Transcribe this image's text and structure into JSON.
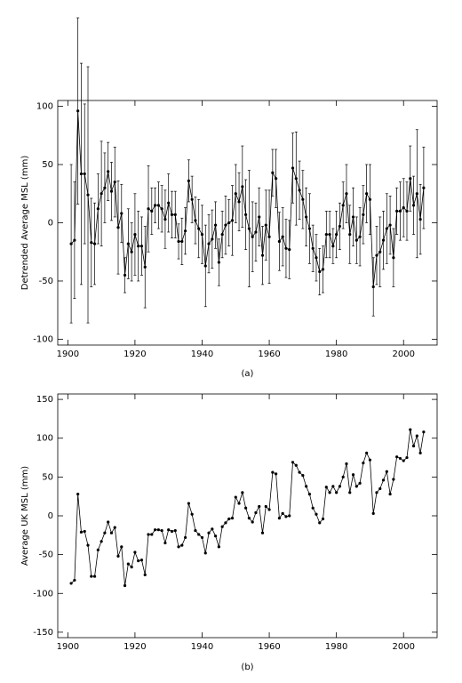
{
  "chart_data": [
    {
      "type": "errorbar",
      "label": "(a)",
      "ylabel": "Detrended Average MSL (mm)",
      "color": "#000000",
      "x": [
        1901,
        1902,
        1903,
        1904,
        1905,
        1906,
        1907,
        1908,
        1909,
        1910,
        1911,
        1912,
        1913,
        1914,
        1915,
        1916,
        1917,
        1918,
        1919,
        1920,
        1921,
        1922,
        1923,
        1924,
        1925,
        1926,
        1927,
        1928,
        1929,
        1930,
        1931,
        1932,
        1933,
        1934,
        1935,
        1936,
        1937,
        1938,
        1939,
        1940,
        1941,
        1942,
        1943,
        1944,
        1945,
        1946,
        1947,
        1948,
        1949,
        1950,
        1951,
        1952,
        1953,
        1954,
        1955,
        1956,
        1957,
        1958,
        1959,
        1960,
        1961,
        1962,
        1963,
        1964,
        1965,
        1966,
        1967,
        1968,
        1969,
        1970,
        1971,
        1972,
        1973,
        1974,
        1975,
        1976,
        1977,
        1978,
        1979,
        1980,
        1981,
        1982,
        1983,
        1984,
        1985,
        1986,
        1987,
        1988,
        1989,
        1990,
        1991,
        1992,
        1993,
        1994,
        1995,
        1996,
        1997,
        1998,
        1999,
        2000,
        2001,
        2002,
        2003,
        2004,
        2005,
        2006
      ],
      "values": [
        -18,
        -15,
        96,
        42,
        42,
        24,
        -17,
        -18,
        12,
        25,
        30,
        44,
        27,
        35,
        -4,
        8,
        -45,
        -18,
        -25,
        -10,
        -20,
        -20,
        -38,
        12,
        10,
        15,
        15,
        12,
        3,
        17,
        7,
        7,
        -16,
        -16,
        -7,
        36,
        20,
        2,
        -5,
        -10,
        -37,
        -18,
        -14,
        -2,
        -34,
        -10,
        -2,
        0,
        2,
        25,
        18,
        31,
        7,
        -5,
        -12,
        -8,
        5,
        -28,
        -2,
        -12,
        43,
        38,
        -16,
        -12,
        -22,
        -23,
        47,
        38,
        28,
        20,
        5,
        -5,
        -22,
        -30,
        -42,
        -40,
        -10,
        -10,
        -20,
        -10,
        -3,
        15,
        25,
        -10,
        5,
        -15,
        -12,
        7,
        25,
        20,
        -55,
        -28,
        -25,
        -15,
        -5,
        -2,
        -30,
        10,
        10,
        13,
        10,
        38,
        15,
        25,
        3,
        30
      ],
      "errors": [
        68,
        50,
        80,
        95,
        60,
        110,
        38,
        35,
        30,
        45,
        30,
        25,
        25,
        30,
        40,
        25,
        15,
        30,
        25,
        35,
        30,
        25,
        35,
        37,
        20,
        15,
        20,
        20,
        25,
        25,
        20,
        20,
        15,
        20,
        20,
        18,
        20,
        20,
        25,
        25,
        35,
        25,
        25,
        20,
        20,
        20,
        25,
        20,
        30,
        25,
        25,
        35,
        30,
        50,
        30,
        25,
        25,
        25,
        30,
        40,
        20,
        25,
        25,
        25,
        25,
        25,
        30,
        40,
        25,
        25,
        25,
        30,
        20,
        20,
        20,
        20,
        20,
        20,
        15,
        20,
        20,
        20,
        25,
        25,
        25,
        20,
        25,
        25,
        25,
        30,
        25,
        25,
        30,
        25,
        30,
        25,
        25,
        20,
        25,
        25,
        25,
        28,
        25,
        55,
        30,
        35
      ],
      "xlim": [
        1897,
        2010
      ],
      "xticks": [
        1900,
        1920,
        1940,
        1960,
        1980,
        2000
      ],
      "ylim": [
        -105,
        105
      ],
      "yticks": [
        -100,
        -50,
        0,
        50,
        100
      ]
    },
    {
      "type": "line",
      "label": "(b)",
      "ylabel": "Average UK MSL (mm)",
      "color": "#000000",
      "x": [
        1901,
        1902,
        1903,
        1904,
        1905,
        1906,
        1907,
        1908,
        1909,
        1910,
        1911,
        1912,
        1913,
        1914,
        1915,
        1916,
        1917,
        1918,
        1919,
        1920,
        1921,
        1922,
        1923,
        1924,
        1925,
        1926,
        1927,
        1928,
        1929,
        1930,
        1931,
        1932,
        1933,
        1934,
        1935,
        1936,
        1937,
        1938,
        1939,
        1940,
        1941,
        1942,
        1943,
        1944,
        1945,
        1946,
        1947,
        1948,
        1949,
        1950,
        1951,
        1952,
        1953,
        1954,
        1955,
        1956,
        1957,
        1958,
        1959,
        1960,
        1961,
        1962,
        1963,
        1964,
        1965,
        1966,
        1967,
        1968,
        1969,
        1970,
        1971,
        1972,
        1973,
        1974,
        1975,
        1976,
        1977,
        1978,
        1979,
        1980,
        1981,
        1982,
        1983,
        1984,
        1985,
        1986,
        1987,
        1988,
        1989,
        1990,
        1991,
        1992,
        1993,
        1994,
        1995,
        1996,
        1997,
        1998,
        1999,
        2000,
        2001,
        2002,
        2003,
        2004,
        2005,
        2006
      ],
      "values": [
        -87,
        -83,
        28,
        -21,
        -20,
        -38,
        -78,
        -78,
        -44,
        -33,
        -22,
        -8,
        -22,
        -15,
        -52,
        -40,
        -90,
        -62,
        -66,
        -47,
        -58,
        -57,
        -76,
        -24,
        -24,
        -18,
        -18,
        -19,
        -35,
        -18,
        -20,
        -19,
        -40,
        -38,
        -28,
        16,
        2,
        -19,
        -24,
        -28,
        -48,
        -22,
        -17,
        -26,
        -40,
        -14,
        -9,
        -4,
        -3,
        24,
        16,
        30,
        10,
        -3,
        -8,
        4,
        12,
        -22,
        12,
        8,
        56,
        54,
        -3,
        3,
        -1,
        0,
        69,
        65,
        56,
        52,
        38,
        28,
        10,
        2,
        -9,
        -4,
        37,
        30,
        38,
        30,
        38,
        50,
        67,
        30,
        53,
        38,
        42,
        68,
        81,
        72,
        3,
        30,
        35,
        46,
        57,
        28,
        47,
        76,
        74,
        71,
        75,
        111,
        90,
        103,
        81,
        108
      ],
      "xlim": [
        1897,
        2010
      ],
      "xticks": [
        1900,
        1920,
        1940,
        1960,
        1980,
        2000
      ],
      "ylim": [
        -157,
        157
      ],
      "yticks": [
        -150,
        -100,
        -50,
        0,
        50,
        100,
        150
      ]
    }
  ]
}
